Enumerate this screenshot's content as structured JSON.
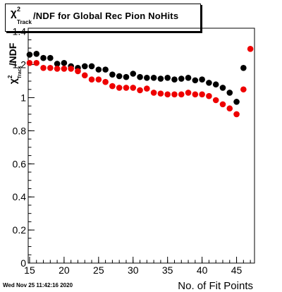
{
  "title": {
    "symbol": "χ",
    "symbol_sup": "2",
    "symbol_sub": "Track",
    "text": "/NDF for Global Rec Pion NoHits"
  },
  "timestamp": "Wed Nov 25 11:42:16 2020",
  "chart_data": {
    "type": "scatter",
    "title": "χ²_Track/NDF for Global Rec Pion NoHits",
    "xlabel": "No. of Fit Points",
    "ylabel": "χ²_Track/NDF",
    "ylabel_parts": {
      "symbol": "χ",
      "sup": "2",
      "sub": "Track",
      "rest": "/NDF"
    },
    "xlim": [
      14.8,
      47.6
    ],
    "ylim": [
      0,
      1.42
    ],
    "xticks": [
      15,
      20,
      25,
      30,
      35,
      40,
      45
    ],
    "xtick_labels": [
      "15",
      "20",
      "25",
      "30",
      "35",
      "40",
      "45"
    ],
    "yticks": [
      0,
      0.2,
      0.4,
      0.6,
      0.8,
      1,
      1.2,
      1.4
    ],
    "ytick_labels": [
      "0",
      "0.2",
      "0.4",
      "0.6",
      "0.8",
      "1",
      "1.2",
      "1.4"
    ],
    "grid": false,
    "legend": "none",
    "series": [
      {
        "color": "#000000",
        "x": [
          15,
          16,
          17,
          18,
          19,
          20,
          21,
          22,
          23,
          24,
          25,
          26,
          27,
          28,
          29,
          30,
          31,
          32,
          33,
          34,
          35,
          36,
          37,
          38,
          39,
          40,
          41,
          42,
          43,
          44,
          45,
          46
        ],
        "y": [
          1.26,
          1.265,
          1.24,
          1.24,
          1.205,
          1.21,
          1.19,
          1.18,
          1.19,
          1.19,
          1.17,
          1.17,
          1.14,
          1.13,
          1.125,
          1.145,
          1.125,
          1.12,
          1.12,
          1.115,
          1.12,
          1.11,
          1.115,
          1.12,
          1.105,
          1.11,
          1.09,
          1.08,
          1.06,
          1.03,
          0.975,
          1.18
        ]
      },
      {
        "color": "#ee0000",
        "x": [
          15,
          16,
          17,
          18,
          19,
          20,
          21,
          22,
          23,
          24,
          25,
          26,
          27,
          28,
          29,
          30,
          31,
          32,
          33,
          34,
          35,
          36,
          37,
          38,
          39,
          40,
          41,
          42,
          43,
          44,
          45,
          46,
          47
        ],
        "y": [
          1.21,
          1.21,
          1.18,
          1.18,
          1.175,
          1.175,
          1.175,
          1.16,
          1.135,
          1.11,
          1.11,
          1.095,
          1.07,
          1.06,
          1.06,
          1.06,
          1.045,
          1.055,
          1.03,
          1.025,
          1.02,
          1.02,
          1.02,
          1.03,
          1.02,
          1.02,
          1.01,
          0.985,
          0.96,
          0.935,
          0.9,
          1.05,
          1.295
        ]
      }
    ]
  }
}
